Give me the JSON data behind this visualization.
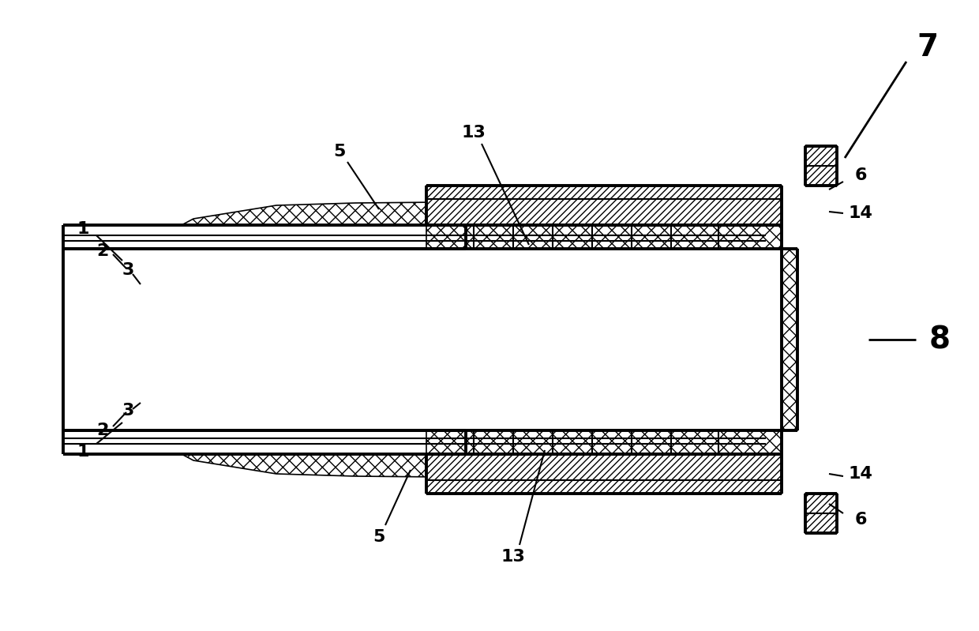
{
  "bg_color": "#ffffff",
  "line_color": "#000000",
  "lw_thick": 2.8,
  "lw_thin": 1.5,
  "lw_med": 2.0,
  "fig_w": 12.4,
  "fig_h": 7.99
}
